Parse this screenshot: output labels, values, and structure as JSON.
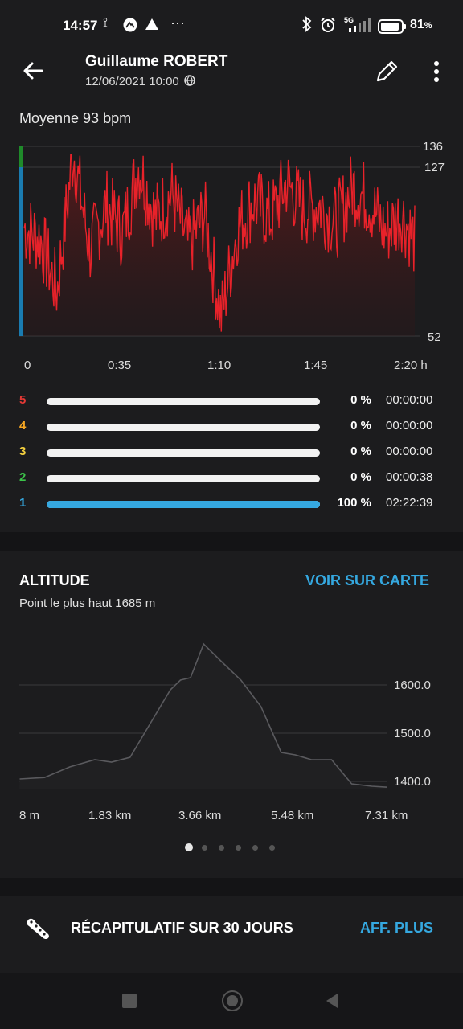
{
  "status_bar": {
    "time": "14:57",
    "network": "5G",
    "battery": "81",
    "battery_unit": "%"
  },
  "header": {
    "name": "Guillaume ROBERT",
    "datetime": "12/06/2021 10:00"
  },
  "heart_rate": {
    "average_label": "Moyenne 93 bpm",
    "y_ticks": [
      "136",
      "127",
      "52"
    ],
    "x_ticks": [
      "0",
      "0:35",
      "1:10",
      "1:45",
      "2:20 h"
    ]
  },
  "zones": [
    {
      "num": "5",
      "color": "#e53935",
      "pct_value": 0,
      "pct": "0 %",
      "duration": "00:00:00"
    },
    {
      "num": "4",
      "color": "#f5a623",
      "pct_value": 0,
      "pct": "0 %",
      "duration": "00:00:00"
    },
    {
      "num": "3",
      "color": "#f4d03f",
      "pct_value": 0,
      "pct": "0 %",
      "duration": "00:00:00"
    },
    {
      "num": "2",
      "color": "#3cc34a",
      "pct_value": 0,
      "pct": "0 %",
      "duration": "00:00:38"
    },
    {
      "num": "1",
      "color": "#35a8e0",
      "pct_value": 100,
      "pct": "100 %",
      "duration": "02:22:39"
    }
  ],
  "altitude": {
    "title": "ALTITUDE",
    "map_link": "VOIR SUR CARTE",
    "highest": "Point le plus haut 1685 m",
    "y_ticks": [
      "1600.0",
      "1500.0",
      "1400.0"
    ],
    "x_ticks": [
      "8 m",
      "1.83 km",
      "3.66 km",
      "5.48 km",
      "7.31 km"
    ]
  },
  "pager": {
    "count": 6,
    "active": 0
  },
  "summary": {
    "title": "RÉCAPITULATIF SUR 30 JOURS",
    "link": "AFF. PLUS"
  },
  "colors": {
    "accent": "#35a8e0",
    "hr_line": "#e8222a",
    "background": "#1c1c1e"
  },
  "chart_data": [
    {
      "type": "line",
      "title": "Moyenne 93 bpm",
      "xlabel": "",
      "ylabel": "",
      "x_unit": "h",
      "ylim": [
        52,
        136
      ],
      "x": [
        0,
        0.1,
        0.2,
        0.3,
        0.4,
        0.5,
        0.6,
        0.7,
        0.8,
        0.9,
        1.0,
        1.1,
        1.2,
        1.3,
        1.4,
        1.5,
        1.6,
        1.7,
        1.8,
        1.9,
        2.0,
        2.1,
        2.2,
        2.3,
        2.38
      ],
      "series": [
        {
          "values": [
            100,
            95,
            72,
            134,
            90,
            110,
            98,
            128,
            104,
            115,
            92,
            106,
            60,
            100,
            112,
            104,
            120,
            108,
            110,
            102,
            118,
            112,
            98,
            106,
            94
          ]
        }
      ]
    },
    {
      "type": "area",
      "title": "ALTITUDE",
      "xlabel": "",
      "ylabel": "",
      "y_unit": "m",
      "ylim": [
        1380,
        1700
      ],
      "x": [
        0.008,
        0.5,
        1.0,
        1.5,
        1.83,
        2.2,
        2.6,
        3.0,
        3.2,
        3.4,
        3.66,
        4.0,
        4.4,
        4.8,
        5.2,
        5.48,
        5.8,
        6.2,
        6.6,
        7.0,
        7.31
      ],
      "series": [
        {
          "values": [
            1405,
            1408,
            1430,
            1445,
            1440,
            1450,
            1520,
            1590,
            1610,
            1615,
            1685,
            1650,
            1610,
            1555,
            1460,
            1455,
            1445,
            1445,
            1395,
            1390,
            1388
          ]
        }
      ]
    }
  ]
}
